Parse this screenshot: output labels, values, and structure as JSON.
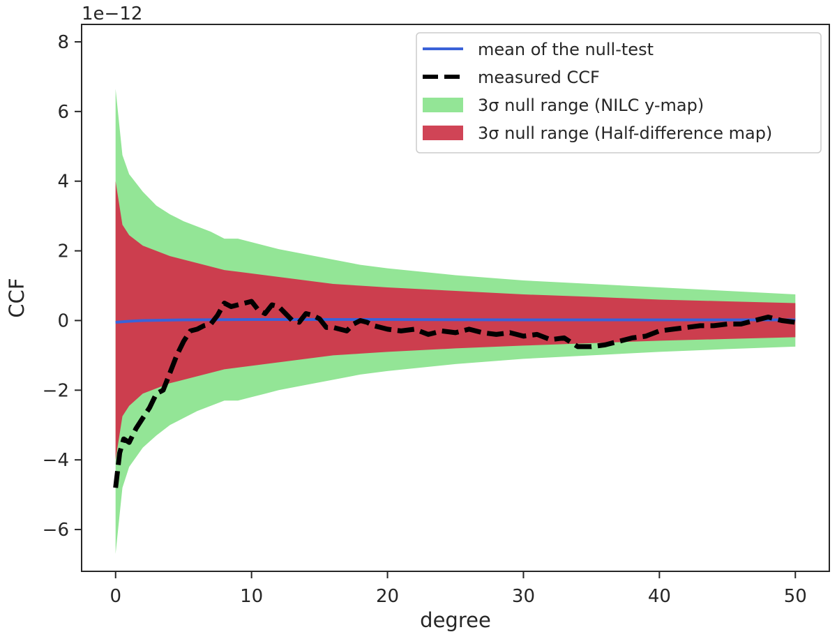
{
  "chart_data": {
    "type": "line",
    "xlabel": "degree",
    "ylabel": "CCF",
    "y_offset_label": "1e−12",
    "xlim": [
      -2.5,
      52.5
    ],
    "ylim": [
      -7.2,
      8.5
    ],
    "x_ticks": [
      0,
      10,
      20,
      30,
      40,
      50
    ],
    "x_tick_labels": [
      "0",
      "10",
      "20",
      "30",
      "40",
      "50"
    ],
    "y_ticks": [
      -6,
      -4,
      -2,
      0,
      2,
      4,
      6,
      8
    ],
    "y_tick_labels": [
      "−6",
      "−4",
      "−2",
      "0",
      "2",
      "4",
      "6",
      "8"
    ],
    "legend_position": "top-right",
    "colors": {
      "mean": "#3a62d8",
      "measured": "#000000",
      "nilc_band": "#93e596",
      "halfdiff_band": "#cd3a4d"
    },
    "series": [
      {
        "name": "mean of the null-test",
        "kind": "line",
        "style": "solid",
        "x": [
          0,
          1,
          2,
          5,
          10,
          20,
          30,
          40,
          50
        ],
        "y": [
          -0.05,
          -0.02,
          0.0,
          0.02,
          0.03,
          0.03,
          0.02,
          0.02,
          0.02
        ]
      },
      {
        "name": "measured CCF",
        "kind": "line",
        "style": "dashed",
        "x": [
          0,
          0.3,
          0.6,
          1,
          1.5,
          2,
          2.5,
          3,
          3.5,
          4,
          4.5,
          5,
          5.5,
          6,
          6.5,
          7,
          7.5,
          8,
          8.5,
          9,
          9.5,
          10,
          10.5,
          11,
          11.5,
          12,
          12.5,
          13,
          13.5,
          14,
          14.5,
          15,
          15.5,
          16,
          16.5,
          17,
          17.5,
          18,
          18.5,
          19,
          19.5,
          20,
          21,
          22,
          23,
          24,
          25,
          26,
          27,
          28,
          29,
          30,
          31,
          32,
          33,
          34,
          35,
          36,
          37,
          38,
          39,
          40,
          41,
          42,
          43,
          44,
          45,
          46,
          47,
          48,
          49,
          50
        ],
        "y": [
          -4.8,
          -3.8,
          -3.4,
          -3.5,
          -3.1,
          -2.8,
          -2.5,
          -2.1,
          -2.0,
          -1.5,
          -1.0,
          -0.6,
          -0.3,
          -0.25,
          -0.15,
          -0.1,
          0.15,
          0.5,
          0.4,
          0.45,
          0.5,
          0.55,
          0.3,
          0.2,
          0.45,
          0.4,
          0.2,
          0.0,
          -0.05,
          0.2,
          0.15,
          0.05,
          -0.2,
          -0.2,
          -0.25,
          -0.3,
          -0.1,
          0.0,
          -0.05,
          -0.15,
          -0.2,
          -0.25,
          -0.3,
          -0.25,
          -0.4,
          -0.3,
          -0.35,
          -0.25,
          -0.35,
          -0.4,
          -0.35,
          -0.45,
          -0.4,
          -0.55,
          -0.5,
          -0.75,
          -0.75,
          -0.7,
          -0.6,
          -0.5,
          -0.45,
          -0.3,
          -0.25,
          -0.2,
          -0.15,
          -0.15,
          -0.1,
          -0.1,
          0.0,
          0.1,
          0.0,
          -0.05
        ]
      },
      {
        "name": "3σ null range (NILC y-map)",
        "kind": "band",
        "x": [
          0,
          0.5,
          1,
          2,
          3,
          4,
          5,
          6,
          7,
          8,
          9,
          10,
          12,
          14,
          16,
          18,
          20,
          25,
          30,
          35,
          40,
          45,
          50
        ],
        "upper": [
          6.65,
          4.75,
          4.2,
          3.7,
          3.3,
          3.05,
          2.85,
          2.7,
          2.55,
          2.35,
          2.35,
          2.25,
          2.05,
          1.9,
          1.75,
          1.6,
          1.5,
          1.3,
          1.15,
          1.05,
          0.95,
          0.85,
          0.75
        ],
        "lower": [
          -6.7,
          -4.8,
          -4.2,
          -3.65,
          -3.3,
          -3.0,
          -2.8,
          -2.6,
          -2.45,
          -2.3,
          -2.3,
          -2.2,
          -2.0,
          -1.85,
          -1.7,
          -1.55,
          -1.45,
          -1.25,
          -1.1,
          -1.0,
          -0.9,
          -0.82,
          -0.75
        ]
      },
      {
        "name": "3σ null range (Half-difference map)",
        "kind": "band",
        "x": [
          0,
          0.5,
          1,
          2,
          3,
          4,
          5,
          6,
          7,
          8,
          9,
          10,
          12,
          14,
          16,
          18,
          20,
          25,
          30,
          35,
          40,
          45,
          50
        ],
        "upper": [
          4.0,
          2.75,
          2.45,
          2.15,
          2.0,
          1.85,
          1.75,
          1.65,
          1.55,
          1.45,
          1.4,
          1.35,
          1.25,
          1.15,
          1.05,
          1.0,
          0.95,
          0.85,
          0.75,
          0.68,
          0.6,
          0.55,
          0.5
        ],
        "lower": [
          -4.0,
          -2.75,
          -2.45,
          -2.1,
          -1.95,
          -1.8,
          -1.7,
          -1.6,
          -1.5,
          -1.4,
          -1.35,
          -1.3,
          -1.2,
          -1.1,
          -1.0,
          -0.95,
          -0.9,
          -0.8,
          -0.72,
          -0.65,
          -0.58,
          -0.53,
          -0.48
        ]
      }
    ]
  }
}
